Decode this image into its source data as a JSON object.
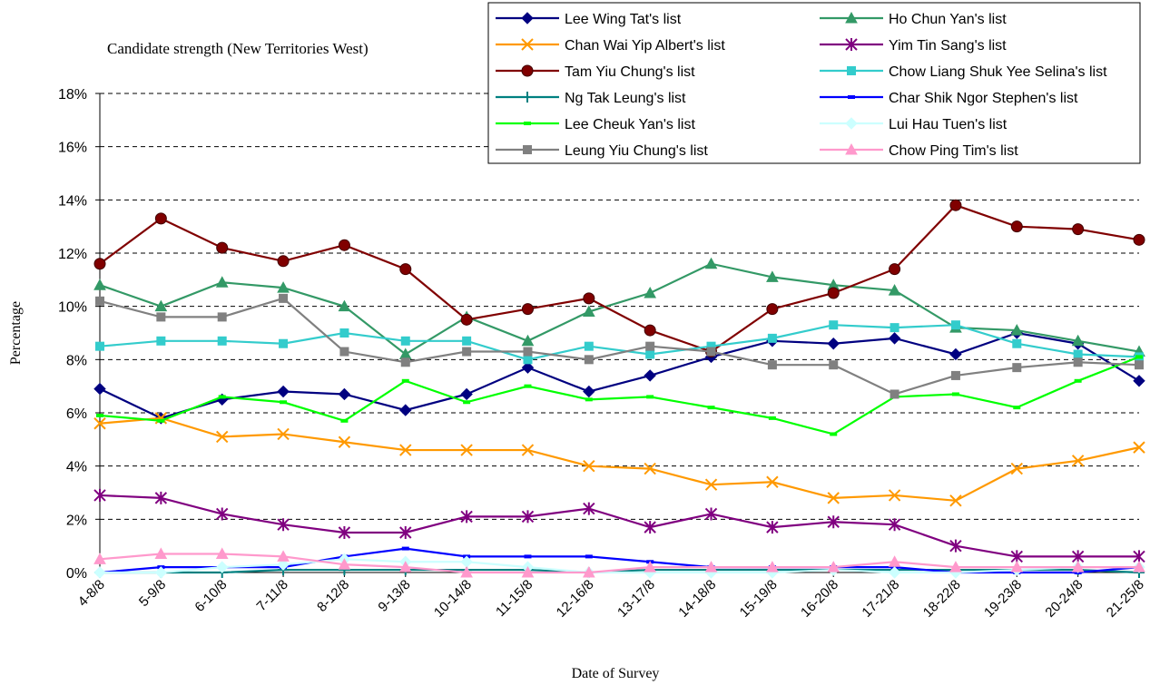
{
  "chart_data": {
    "type": "line",
    "title": "Candidate strength  (New Territories West)",
    "xlabel": "Date of Survey",
    "ylabel": "Percentage",
    "ylim": [
      0,
      18
    ],
    "y_ticks": [
      0,
      2,
      4,
      6,
      8,
      10,
      12,
      14,
      16,
      18
    ],
    "y_tick_suffix": "%",
    "grid": "horizontal dashed",
    "legend_position": "top-right",
    "categories": [
      "4-8/8",
      "5-9/8",
      "6-10/8",
      "7-11/8",
      "8-12/8",
      "9-13/8",
      "10-14/8",
      "11-15/8",
      "12-16/8",
      "13-17/8",
      "14-18/8",
      "15-19/8",
      "16-20/8",
      "17-21/8",
      "18-22/8",
      "19-23/8",
      "20-24/8",
      "21-25/8"
    ],
    "series": [
      {
        "name": "Lee Wing Tat's list",
        "color": "#000080",
        "marker": "diamond",
        "values": [
          6.9,
          5.8,
          6.5,
          6.8,
          6.7,
          6.1,
          6.7,
          7.7,
          6.8,
          7.4,
          8.1,
          8.7,
          8.6,
          8.8,
          8.2,
          9.0,
          8.6,
          7.2
        ]
      },
      {
        "name": "Ho Chun Yan's list",
        "color": "#339966",
        "marker": "triangle",
        "values": [
          10.8,
          10.0,
          10.9,
          10.7,
          10.0,
          8.2,
          9.6,
          8.7,
          9.8,
          10.5,
          11.6,
          11.1,
          10.8,
          10.6,
          9.2,
          9.1,
          8.7,
          8.3
        ]
      },
      {
        "name": "Chan Wai Yip Albert's list",
        "color": "#FF9900",
        "marker": "x",
        "values": [
          5.6,
          5.8,
          5.1,
          5.2,
          4.9,
          4.6,
          4.6,
          4.6,
          4.0,
          3.9,
          3.3,
          3.4,
          2.8,
          2.9,
          2.7,
          3.9,
          4.2,
          4.7
        ]
      },
      {
        "name": "Yim Tin Sang's list",
        "color": "#800080",
        "marker": "star",
        "values": [
          2.9,
          2.8,
          2.2,
          1.8,
          1.5,
          1.5,
          2.1,
          2.1,
          2.4,
          1.7,
          2.2,
          1.7,
          1.9,
          1.8,
          1.0,
          0.6,
          0.6,
          0.6
        ]
      },
      {
        "name": "Tam Yiu Chung's list",
        "color": "#800000",
        "marker": "circle",
        "values": [
          11.6,
          13.3,
          12.2,
          11.7,
          12.3,
          11.4,
          9.5,
          9.9,
          10.3,
          9.1,
          8.3,
          9.9,
          10.5,
          11.4,
          13.8,
          13.0,
          12.9,
          12.5
        ]
      },
      {
        "name": "Chow Liang Shuk Yee Selina's list",
        "color": "#33CCCC",
        "marker": "square",
        "values": [
          8.5,
          8.7,
          8.7,
          8.6,
          9.0,
          8.7,
          8.7,
          8.0,
          8.5,
          8.2,
          8.5,
          8.8,
          9.3,
          9.2,
          9.3,
          8.6,
          8.2,
          8.1
        ]
      },
      {
        "name": "Ng Tak Leung's list",
        "color": "#008080",
        "marker": "plus",
        "values": [
          0.0,
          0.0,
          0.0,
          0.1,
          0.1,
          0.1,
          0.1,
          0.1,
          0.0,
          0.1,
          0.1,
          0.1,
          0.1,
          0.1,
          0.1,
          0.1,
          0.1,
          0.0
        ]
      },
      {
        "name": "Char Shik Ngor Stephen's list",
        "color": "#0000FF",
        "marker": "dash",
        "values": [
          0.0,
          0.2,
          0.2,
          0.2,
          0.6,
          0.9,
          0.6,
          0.6,
          0.6,
          0.4,
          0.2,
          0.2,
          0.2,
          0.2,
          0.0,
          0.0,
          0.0,
          0.2
        ]
      },
      {
        "name": "Lee Cheuk Yan's list",
        "color": "#00FF00",
        "marker": "dash",
        "values": [
          5.9,
          5.7,
          6.6,
          6.4,
          5.7,
          7.2,
          6.4,
          7.0,
          6.5,
          6.6,
          6.2,
          5.8,
          5.2,
          6.6,
          6.7,
          6.2,
          7.2,
          8.1
        ]
      },
      {
        "name": "Lui Hau Tuen's list",
        "color": "#CCFFFF",
        "marker": "diamond",
        "values": [
          0.0,
          0.0,
          0.2,
          0.3,
          0.5,
          0.4,
          0.4,
          0.2,
          0.0,
          0.0,
          0.0,
          0.0,
          0.1,
          0.0,
          0.0,
          0.1,
          0.2,
          0.2
        ]
      },
      {
        "name": "Leung Yiu Chung's list",
        "color": "#808080",
        "marker": "square",
        "values": [
          10.2,
          9.6,
          9.6,
          10.3,
          8.3,
          7.9,
          8.3,
          8.3,
          8.0,
          8.5,
          8.3,
          7.8,
          7.8,
          6.7,
          7.4,
          7.7,
          7.9,
          7.8
        ]
      },
      {
        "name": "Chow Ping Tim's list",
        "color": "#FF99CC",
        "marker": "triangle",
        "values": [
          0.5,
          0.7,
          0.7,
          0.6,
          0.3,
          0.2,
          0.0,
          0.0,
          0.0,
          0.2,
          0.2,
          0.2,
          0.2,
          0.4,
          0.2,
          0.2,
          0.2,
          0.2
        ]
      }
    ]
  }
}
